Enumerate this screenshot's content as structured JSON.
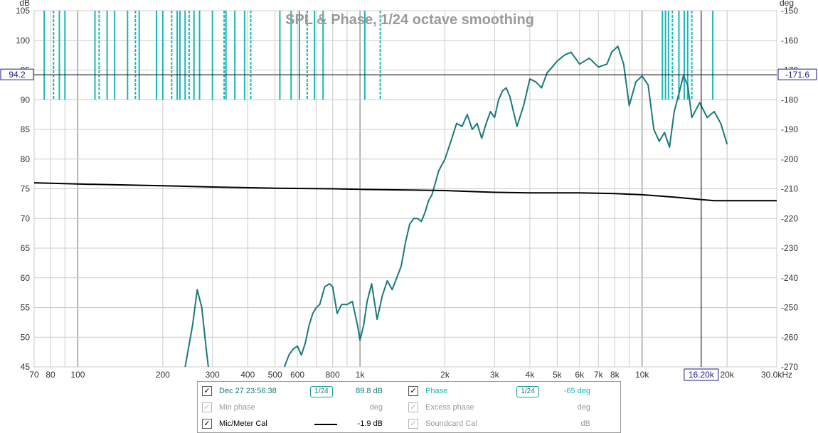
{
  "chart_data": {
    "type": "line",
    "title": "SPL & Phase, 1/24 octave smoothing",
    "x_axis": {
      "scale": "log",
      "range_hz": [
        70,
        30000
      ],
      "tick_values": [
        70,
        80,
        100,
        200,
        300,
        400,
        500,
        600,
        800,
        1000,
        2000,
        3000,
        4000,
        5000,
        6000,
        7000,
        8000,
        10000,
        20000,
        30000
      ],
      "tick_labels": [
        "70",
        "80",
        "100",
        "200",
        "300",
        "400",
        "500",
        "600",
        "800",
        "1k",
        "2k",
        "3k",
        "4k",
        "5k",
        "6k",
        "7k",
        "8k",
        "10k",
        "20k",
        "30.0kHz"
      ]
    },
    "y_left": {
      "label": "dB",
      "range": [
        45,
        105
      ],
      "ticks": [
        105,
        100,
        95,
        90,
        85,
        80,
        75,
        70,
        65,
        60,
        55,
        50,
        45
      ]
    },
    "y_right": {
      "label": "deg",
      "range": [
        -270,
        -150
      ],
      "ticks": [
        -150,
        -160,
        -170,
        -180,
        -190,
        -200,
        -210,
        -220,
        -230,
        -240,
        -250,
        -260,
        -270
      ]
    },
    "grid": true,
    "cursor": {
      "x_label": "16.20k",
      "y_left_label": "94.2",
      "y_right_label": "-171.6",
      "freq_hz": 16200,
      "spl_db": 94.2
    },
    "series": [
      {
        "name": "Dec 27 23:56:38",
        "axis": "left",
        "color": "#1a7a7a",
        "x": [
          240,
          255,
          265,
          275,
          285,
          290
        ],
        "y": [
          45,
          52,
          58,
          55,
          48,
          45
        ]
      },
      {
        "name": "Dec 27 23:56:38",
        "axis": "left",
        "color": "#1a7a7a",
        "x": [
          540,
          560,
          580,
          600,
          620,
          640,
          660,
          680,
          700,
          720,
          750,
          780,
          800,
          830,
          860,
          900,
          940,
          980,
          1000,
          1030,
          1060,
          1100,
          1150,
          1200,
          1250,
          1300,
          1350,
          1400,
          1450,
          1500,
          1550,
          1600,
          1650,
          1700,
          1750,
          1800,
          1850,
          1900,
          1950,
          2000,
          2100,
          2200,
          2300,
          2400,
          2500,
          2600,
          2700,
          2800,
          2900,
          3000,
          3100,
          3200,
          3300,
          3400,
          3600,
          3800,
          4000,
          4200,
          4400,
          4600,
          4800,
          5000,
          5300,
          5600,
          6000,
          6500,
          7000,
          7500,
          7800,
          8200,
          8600,
          9000,
          9500,
          10000,
          10500,
          11000,
          11500,
          12000,
          12500,
          13000,
          13500,
          14000,
          14500,
          15000,
          16000,
          17000,
          18000,
          19000,
          20000
        ],
        "y": [
          45,
          47,
          48,
          48.5,
          47,
          49,
          52,
          54,
          55,
          55.5,
          58.5,
          59,
          58.5,
          54,
          55.5,
          55.5,
          56,
          52,
          49.5,
          52,
          56,
          59,
          53,
          57,
          59.5,
          58,
          60,
          62,
          66,
          69,
          70,
          70,
          69.5,
          71,
          73,
          74,
          76,
          78,
          79,
          80,
          83,
          86,
          85.5,
          87.5,
          85,
          86,
          83.5,
          86,
          88,
          87,
          90,
          91.5,
          92,
          90.5,
          85.5,
          89,
          93.5,
          93,
          92,
          94.5,
          95.5,
          96.5,
          97.5,
          98,
          96,
          97,
          95.5,
          96,
          98,
          99,
          96,
          89,
          93,
          94,
          92.5,
          85,
          83,
          84.5,
          82,
          88,
          91,
          94,
          92.5,
          87,
          89.5,
          87,
          88,
          86,
          82.5
        ]
      },
      {
        "name": "Mic/Meter Cal",
        "axis": "left",
        "color": "#000000",
        "x": [
          70,
          100,
          200,
          300,
          500,
          800,
          1000,
          1500,
          2000,
          3000,
          4000,
          6000,
          8000,
          10000,
          13000,
          16000,
          18000,
          30000
        ],
        "y": [
          76,
          75.8,
          75.5,
          75.3,
          75.1,
          75.0,
          74.9,
          74.8,
          74.7,
          74.4,
          74.3,
          74.3,
          74.2,
          74.0,
          73.6,
          73.2,
          73.0,
          73.0
        ]
      },
      {
        "name": "Phase",
        "axis": "right",
        "color": "#1ab6b6",
        "wrap_segments_hz": [
          76,
          82,
          86,
          90,
          115,
          119,
          127,
          135,
          150,
          160,
          165,
          190,
          200,
          215,
          225,
          230,
          240,
          248,
          258,
          270,
          300,
          330,
          335,
          360,
          390,
          410,
          520,
          570,
          610,
          650,
          690,
          740,
          1040,
          1180,
          11800,
          12100,
          12400,
          12800,
          13500,
          14100,
          14500,
          15000,
          17800
        ]
      }
    ]
  },
  "legend": {
    "rows": [
      {
        "checked": true,
        "enabled": true,
        "name": "Dec 27 23:56:38",
        "smoothing": "1/24",
        "value": "89.8 dB"
      },
      {
        "checked": true,
        "enabled": false,
        "name": "Min phase",
        "value": "deg"
      },
      {
        "checked": true,
        "enabled": true,
        "name": "Mic/Meter Cal",
        "value": "-1.9 dB"
      }
    ],
    "rows_right": [
      {
        "checked": true,
        "enabled": true,
        "name": "Phase",
        "smoothing": "1/24",
        "value": "-65 deg"
      },
      {
        "checked": true,
        "enabled": false,
        "name": "Excess phase",
        "value": "deg"
      },
      {
        "checked": true,
        "enabled": false,
        "name": "Soundcard Cal",
        "value": "dB"
      }
    ]
  },
  "colors": {
    "spl": "#1a7a7a",
    "phase": "#1ab6b6",
    "cal": "#000000",
    "grid": "#c8c8c8",
    "cursor": "#1a1a8a"
  }
}
